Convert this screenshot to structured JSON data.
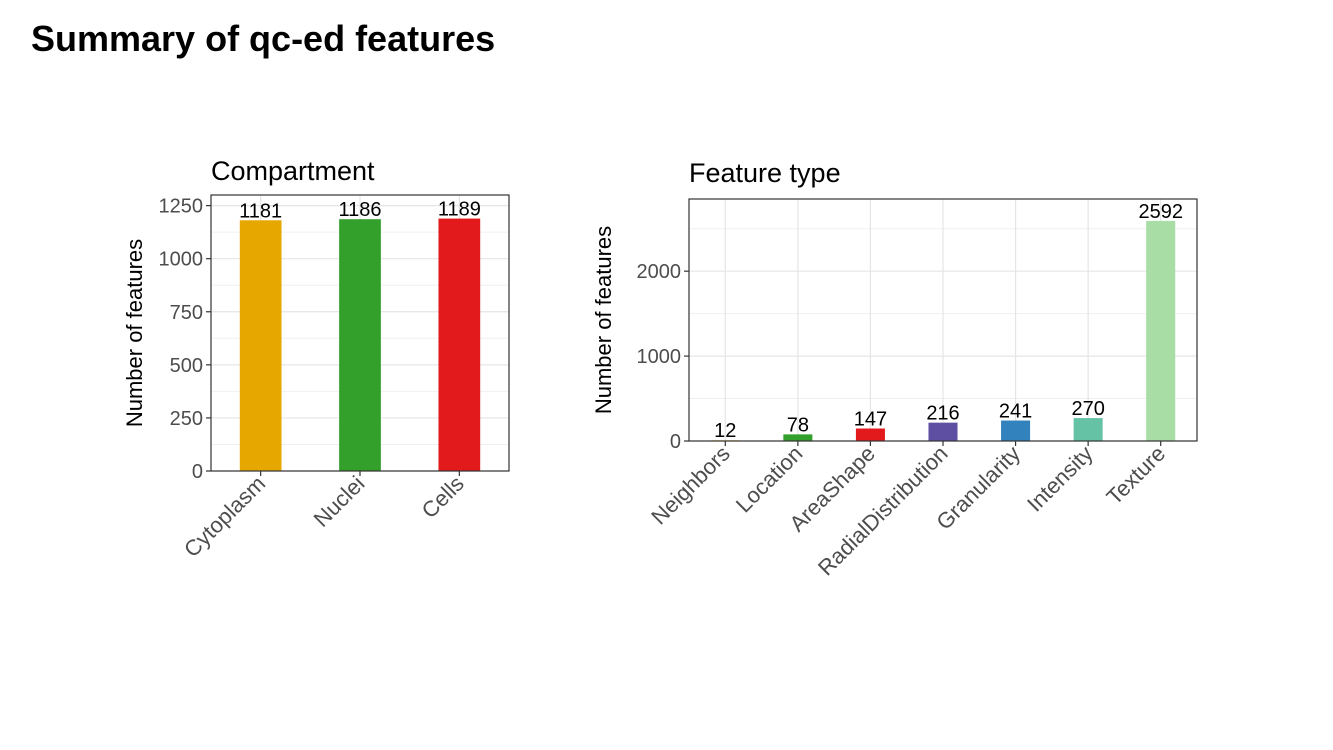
{
  "page": {
    "title": "Summary of qc-ed features"
  },
  "chart_data": [
    {
      "type": "bar",
      "title": "Compartment",
      "xlabel": "",
      "ylabel": "Number of features",
      "categories": [
        "Cytoplasm",
        "Nuclei",
        "Cells"
      ],
      "values": [
        1181,
        1186,
        1189
      ],
      "colors": [
        "#E6A800",
        "#33A02C",
        "#E31A1C"
      ],
      "ylim": [
        0,
        1300
      ],
      "yticks": [
        0,
        250,
        500,
        750,
        1000,
        1250
      ],
      "grid": true
    },
    {
      "type": "bar",
      "title": "Feature type",
      "xlabel": "",
      "ylabel": "Number of features",
      "categories": [
        "Neighbors",
        "Location",
        "AreaShape",
        "RadialDistribution",
        "Granularity",
        "Intensity",
        "Texture"
      ],
      "values": [
        12,
        78,
        147,
        216,
        241,
        270,
        2592
      ],
      "colors": [
        "#FDE0A8",
        "#33A02C",
        "#E31A1C",
        "#5E4FA2",
        "#3182BD",
        "#66C2A5",
        "#A8DDA6"
      ],
      "ylim": [
        0,
        2850
      ],
      "yticks": [
        0,
        1000,
        2000
      ],
      "grid": true
    }
  ]
}
